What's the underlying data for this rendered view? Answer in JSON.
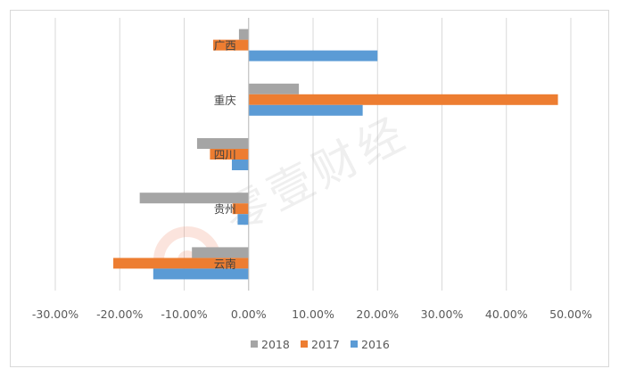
{
  "watermark": {
    "text": "零壹财经"
  },
  "chart_data": {
    "type": "bar",
    "orientation": "horizontal",
    "categories": [
      "广西",
      "重庆",
      "四川",
      "贵州",
      "云南"
    ],
    "series": [
      {
        "name": "2018",
        "color": "#a5a5a5",
        "values": [
          -1.5,
          7.8,
          -8.0,
          -16.9,
          -8.8
        ]
      },
      {
        "name": "2017",
        "color": "#ed7d31",
        "values": [
          -5.5,
          48.0,
          -6.0,
          -2.5,
          -21.0
        ]
      },
      {
        "name": "2016",
        "color": "#5b9bd5",
        "values": [
          20.0,
          17.7,
          -2.6,
          -1.7,
          -14.8
        ]
      }
    ],
    "x_ticks": [
      "-30.00%",
      "-20.00%",
      "-10.00%",
      "0.00%",
      "10.00%",
      "20.00%",
      "30.00%",
      "40.00%",
      "50.00%"
    ],
    "xlim": [
      -30,
      50
    ],
    "grid": true,
    "legend_position": "bottom",
    "title": "",
    "xlabel": "",
    "ylabel": ""
  }
}
